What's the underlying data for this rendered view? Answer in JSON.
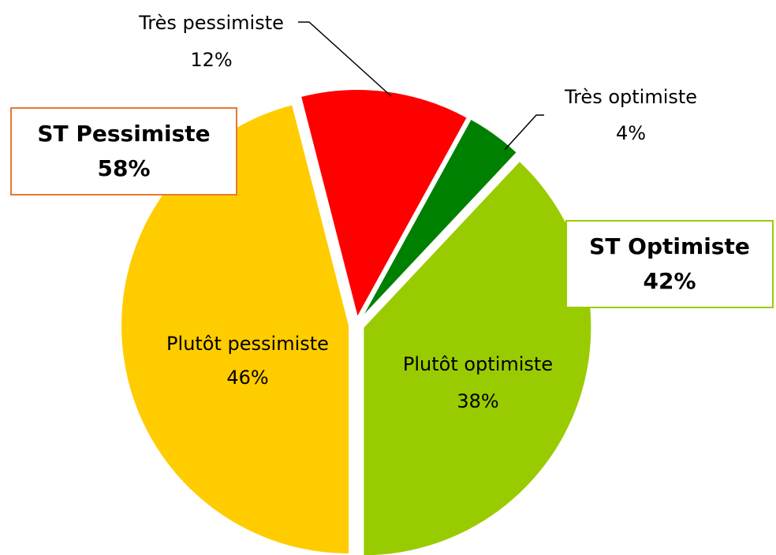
{
  "chart_data": {
    "type": "pie",
    "categories": [
      "Très optimiste",
      "Plutôt optimiste",
      "Plutôt pessimiste",
      "Très pessimiste"
    ],
    "values": [
      4,
      38,
      46,
      12
    ],
    "value_labels": [
      "4%",
      "38%",
      "46%",
      "12%"
    ],
    "colors": [
      "#008000",
      "#99cc00",
      "#ffcc00",
      "#ff0000"
    ],
    "annotations": [
      {
        "text": "ST Pessimiste",
        "subtext": "58%",
        "color": "#e8782e"
      },
      {
        "text": "ST Optimiste",
        "subtext": "42%",
        "color": "#99cc00"
      }
    ]
  }
}
